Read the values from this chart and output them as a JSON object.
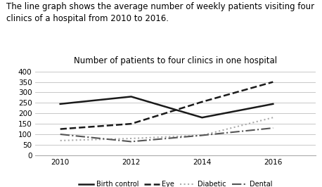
{
  "title": "Number of patients to four clinics in one hospital",
  "description": "The line graph shows the average number of weekly patients visiting four\nclinics of a hospital from 2010 to 2016.",
  "years": [
    2010,
    2012,
    2014,
    2016
  ],
  "series": {
    "Birth control": [
      245,
      280,
      180,
      245
    ],
    "Eye": [
      125,
      150,
      255,
      350
    ],
    "Diabetic": [
      70,
      80,
      95,
      180
    ],
    "Dental": [
      100,
      65,
      95,
      130
    ]
  },
  "line_styles": {
    "Birth control": {
      "color": "#1a1a1a",
      "linestyle": "-",
      "linewidth": 1.8
    },
    "Eye": {
      "color": "#1a1a1a",
      "linestyle": "--",
      "linewidth": 1.8
    },
    "Diabetic": {
      "color": "#aaaaaa",
      "linestyle": ":",
      "linewidth": 1.5
    },
    "Dental": {
      "color": "#555555",
      "linestyle": "-.",
      "linewidth": 1.5
    }
  },
  "ylim": [
    0,
    420
  ],
  "yticks": [
    0,
    50,
    100,
    150,
    200,
    250,
    300,
    350,
    400
  ],
  "xticks": [
    2010,
    2012,
    2014,
    2016
  ],
  "background_color": "#ffffff",
  "grid_color": "#c8c8c8",
  "legend_labels": [
    "Birth control",
    "Eye",
    "Diabetic",
    "Dental"
  ],
  "title_fontsize": 8.5,
  "desc_fontsize": 8.5,
  "tick_fontsize": 7.5,
  "legend_fontsize": 7
}
